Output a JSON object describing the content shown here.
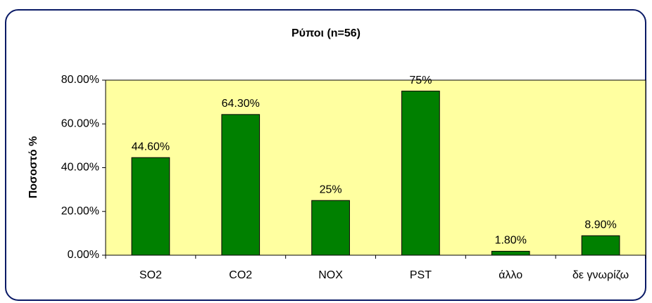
{
  "chart_data": {
    "type": "bar",
    "title": "Ρύποι (n=56)",
    "y_label": "Ποσοστό %",
    "categories": [
      "SO2",
      "CO2",
      "NOX",
      "PST",
      "άλλο",
      "δε γνωρίζω"
    ],
    "values": [
      44.6,
      64.3,
      25,
      75,
      1.8,
      8.9
    ],
    "value_labels": [
      "44.60%",
      "64.30%",
      "25%",
      "75%",
      "1.80%",
      "8.90%"
    ],
    "color": "#008000",
    "ylim": [
      0,
      80
    ],
    "yticks": [
      {
        "value": 0,
        "label": "0.00%"
      },
      {
        "value": 20,
        "label": "20.00%"
      },
      {
        "value": 40,
        "label": "40.00%"
      },
      {
        "value": 60,
        "label": "60.00%"
      },
      {
        "value": 80,
        "label": "80.00%"
      }
    ]
  }
}
